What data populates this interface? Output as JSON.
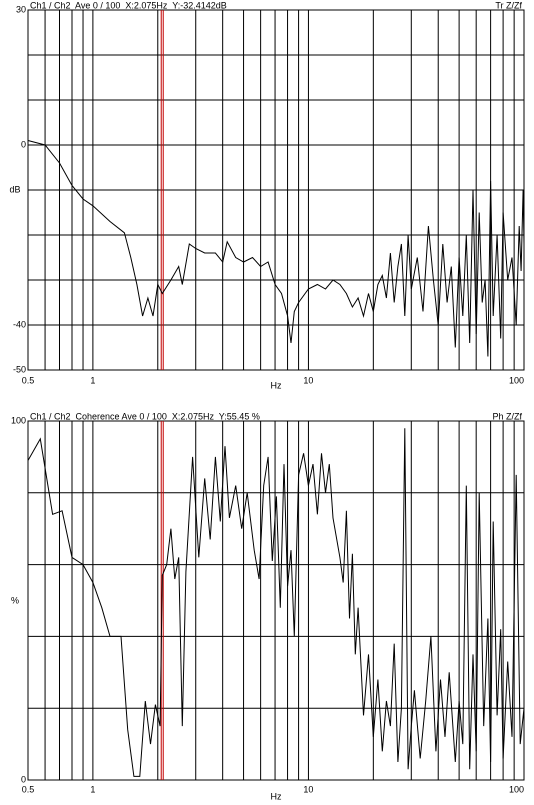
{
  "chart_data": [
    {
      "type": "line",
      "title": "Ch1 / Ch2  Ave 0 / 100  X:2.075Hz  Y:-32.4142dB",
      "title_right": "Tr Z/Zf",
      "x_label": "Hz",
      "y_label": "dB",
      "xscale": "log",
      "grid": true,
      "color": "#000000",
      "cursor_x": 2.075,
      "cursor_color": "#c00000",
      "xlim": [
        0.5,
        100
      ],
      "xticks": [
        0.5,
        1,
        10,
        100
      ],
      "minor_xticks": [
        0.6,
        0.7,
        0.8,
        0.9,
        2,
        3,
        4,
        5,
        6,
        7,
        8,
        9,
        20,
        30,
        40,
        50,
        60,
        70,
        80,
        90
      ],
      "ylim": [
        -50,
        30
      ],
      "yticks": [
        -50,
        -40,
        0,
        30
      ],
      "minor_yticks": [
        -30,
        -20,
        -10,
        10,
        20
      ],
      "x": [
        0.5,
        0.6,
        0.7,
        0.8,
        0.9,
        1,
        1.2,
        1.4,
        1.5,
        1.6,
        1.7,
        1.8,
        1.9,
        2,
        2.1,
        2.3,
        2.5,
        2.6,
        2.8,
        3,
        3.3,
        3.7,
        4,
        4.2,
        4.6,
        5,
        5.5,
        6,
        6.5,
        7,
        7.5,
        8,
        8.3,
        8.6,
        9,
        10,
        11,
        12,
        13,
        14,
        15,
        16,
        17,
        18,
        19,
        20,
        21,
        22,
        23,
        24,
        25,
        26,
        27,
        28,
        29,
        30,
        32,
        34,
        36,
        38,
        40,
        42,
        44,
        46,
        48,
        50,
        52,
        54,
        56,
        58,
        60,
        62,
        64,
        66,
        68,
        70,
        72,
        75,
        78,
        80,
        84,
        88,
        92,
        95,
        97,
        99,
        100
      ],
      "values": [
        1,
        0,
        -4,
        -9,
        -12,
        -13.5,
        -17,
        -19.5,
        -25,
        -31,
        -38,
        -34,
        -38,
        -31,
        -33,
        -30,
        -27,
        -31,
        -22,
        -23,
        -24,
        -24,
        -26,
        -21.5,
        -25,
        -26,
        -25,
        -27,
        -26,
        -31,
        -33,
        -38,
        -44,
        -37,
        -35,
        -32,
        -31,
        -32,
        -30,
        -31,
        -33,
        -36,
        -34,
        -38,
        -33,
        -37,
        -31,
        -29,
        -34,
        -24,
        -35,
        -27,
        -22,
        -38,
        -20,
        -32,
        -25,
        -37,
        -18,
        -30,
        -40,
        -22,
        -35,
        -27,
        -45,
        -25,
        -38,
        -20,
        -44,
        -10,
        -42,
        -15,
        -35,
        -30,
        -47,
        -8,
        -38,
        -20,
        -43,
        -15,
        -30,
        -25,
        -40,
        -18,
        -28,
        -10,
        -22
      ]
    },
    {
      "type": "line",
      "title": "Ch1 / Ch2  Coherence Ave 0 / 100  X:2.075Hz  Y:55.45 %",
      "title_right": "Ph Z/Zf",
      "x_label": "Hz",
      "y_label": "%",
      "xscale": "log",
      "grid": true,
      "color": "#000000",
      "cursor_x": 2.075,
      "cursor_color": "#c00000",
      "xlim": [
        0.5,
        100
      ],
      "xticks": [
        0.5,
        1,
        10,
        100
      ],
      "minor_xticks": [
        0.6,
        0.7,
        0.8,
        0.9,
        2,
        3,
        4,
        5,
        6,
        7,
        8,
        9,
        20,
        30,
        40,
        50,
        60,
        70,
        80,
        90
      ],
      "ylim": [
        0,
        100
      ],
      "yticks": [
        0,
        100
      ],
      "minor_yticks": [
        20,
        40,
        60,
        80
      ],
      "x": [
        0.5,
        0.57,
        0.65,
        0.72,
        0.8,
        0.9,
        1,
        1.1,
        1.2,
        1.35,
        1.45,
        1.55,
        1.65,
        1.75,
        1.85,
        1.95,
        2.05,
        2.1,
        2.2,
        2.3,
        2.4,
        2.5,
        2.6,
        2.7,
        2.9,
        3.1,
        3.3,
        3.5,
        3.7,
        3.9,
        4.1,
        4.3,
        4.6,
        4.9,
        5.2,
        5.6,
        5.9,
        6.2,
        6.5,
        6.8,
        7.1,
        7.4,
        7.7,
        8,
        8.3,
        8.6,
        9,
        9.5,
        10,
        10.5,
        11,
        11.5,
        12,
        12.5,
        13,
        14,
        14.5,
        15,
        15.5,
        16,
        16.5,
        17,
        18,
        19,
        20,
        21,
        22,
        23,
        24,
        25,
        26,
        27,
        28,
        29,
        30,
        31,
        33,
        35,
        37,
        39,
        41,
        43,
        45,
        48,
        50,
        52,
        54,
        56,
        58,
        60,
        62,
        65,
        68,
        70,
        72,
        75,
        78,
        80,
        84,
        88,
        92,
        96,
        100
      ],
      "values": [
        89,
        95,
        74,
        75,
        62,
        60,
        55,
        48,
        40,
        40,
        14,
        1,
        1,
        22,
        10,
        21,
        15,
        57,
        60,
        70,
        56,
        62,
        15,
        58,
        90,
        62,
        84,
        67,
        90,
        72,
        93,
        73,
        82,
        70,
        80,
        64,
        56,
        82,
        90,
        61,
        79,
        48,
        88,
        54,
        64,
        40,
        85,
        91,
        82,
        88,
        74,
        91,
        80,
        88,
        73,
        62,
        55,
        75,
        45,
        63,
        35,
        48,
        18,
        35,
        12,
        28,
        8,
        22,
        15,
        38,
        5,
        20,
        98,
        3,
        15,
        25,
        6,
        22,
        40,
        8,
        28,
        12,
        30,
        5,
        22,
        10,
        82,
        3,
        35,
        8,
        80,
        15,
        45,
        5,
        72,
        18,
        42,
        6,
        33,
        12,
        85,
        10,
        20
      ]
    }
  ]
}
